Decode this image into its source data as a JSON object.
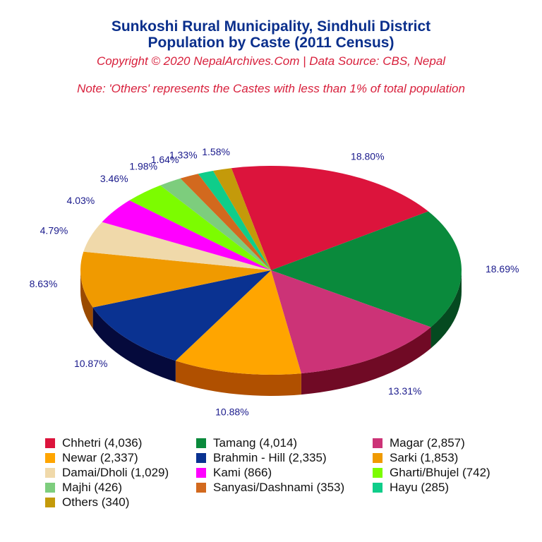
{
  "title_line1": "Sunkoshi Rural Municipality, Sindhuli District",
  "title_line2": "Population by Caste (2011 Census)",
  "copyright": "Copyright © 2020 NepalArchives.Com | Data Source: CBS, Nepal",
  "note": "Note: 'Others' represents the Castes with less than 1% of total population",
  "chart_data": {
    "type": "pie",
    "title": "Population by Caste (2011 Census)",
    "legend_position": "bottom",
    "slices": [
      {
        "label": "Chhetri (4,036)",
        "name": "Chhetri",
        "value": 4036,
        "pct_label": "18.80%",
        "color": "#dc143c",
        "side": "#7a0a20"
      },
      {
        "label": "Tamang (4,014)",
        "name": "Tamang",
        "value": 4014,
        "pct_label": "18.69%",
        "color": "#0a8a3c",
        "side": "#054a20"
      },
      {
        "label": "Magar (2,857)",
        "name": "Magar",
        "value": 2857,
        "pct_label": "13.31%",
        "color": "#cc3377",
        "side": "#700a25"
      },
      {
        "label": "Newar (2,337)",
        "name": "Newar",
        "value": 2337,
        "pct_label": "10.88%",
        "color": "#ffa500",
        "side": "#b05000"
      },
      {
        "label": "Brahmin - Hill (2,335)",
        "name": "Brahmin - Hill",
        "value": 2335,
        "pct_label": "10.87%",
        "color": "#0a3291",
        "side": "#050a3c"
      },
      {
        "label": "Sarki (1,853)",
        "name": "Sarki",
        "value": 1853,
        "pct_label": "8.63%",
        "color": "#f09a00",
        "side": "#9a4a00"
      },
      {
        "label": "Damai/Dholi (1,029)",
        "name": "Damai/Dholi",
        "value": 1029,
        "pct_label": "4.79%",
        "color": "#f0d9aa",
        "side": "#9a8050"
      },
      {
        "label": "Kami (866)",
        "name": "Kami",
        "value": 866,
        "pct_label": "4.03%",
        "color": "#ff00ff",
        "side": "#9a009a"
      },
      {
        "label": "Gharti/Bhujel (742)",
        "name": "Gharti/Bhujel",
        "value": 742,
        "pct_label": "3.46%",
        "color": "#7cfc00",
        "side": "#3c8a00"
      },
      {
        "label": "Majhi (426)",
        "name": "Majhi",
        "value": 426,
        "pct_label": "1.98%",
        "color": "#7dcd7d",
        "side": "#3c7a3c"
      },
      {
        "label": "Sanyasi/Dashnami (353)",
        "name": "Sanyasi/Dashnami",
        "value": 353,
        "pct_label": "1.64%",
        "color": "#d2691e",
        "side": "#7a3a0a"
      },
      {
        "label": "Hayu (285)",
        "name": "Hayu",
        "value": 285,
        "pct_label": "1.33%",
        "color": "#0fcd8a",
        "side": "#0a7a50"
      },
      {
        "label": "Others (340)",
        "name": "Others",
        "value": 340,
        "pct_label": "1.58%",
        "color": "#c49a0a",
        "side": "#7a5a00"
      }
    ]
  }
}
